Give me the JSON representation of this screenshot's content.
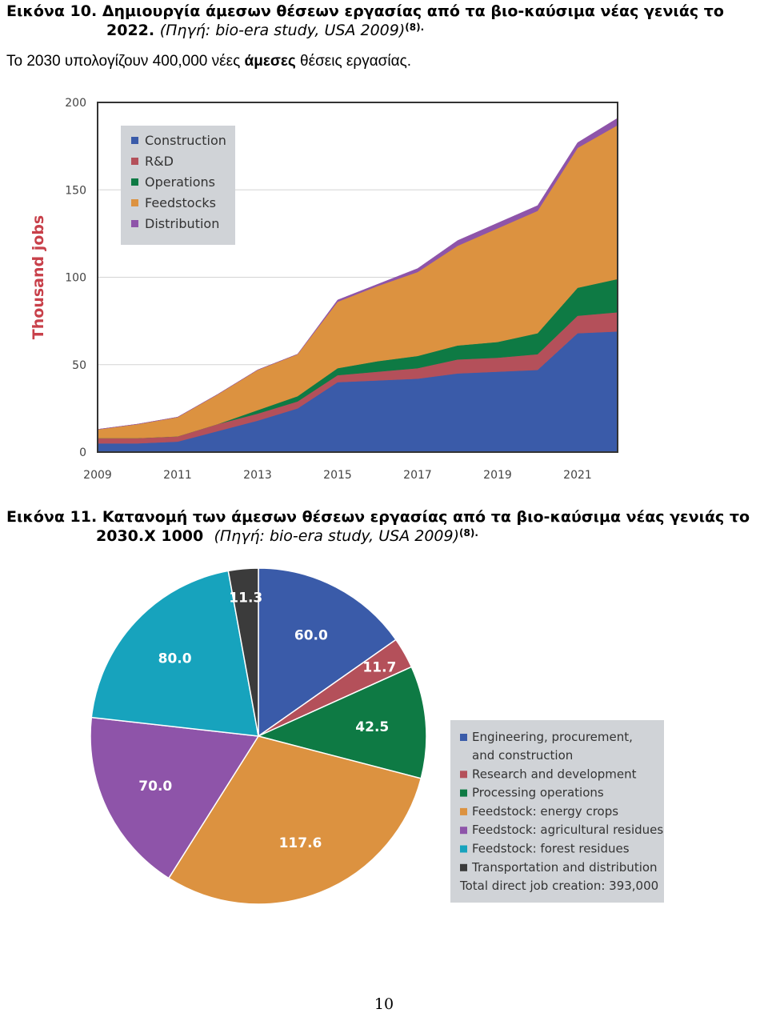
{
  "caption1": {
    "label": "Εικόνα 10.",
    "title_a": "Δημιουργία άμεσων θέσεων εργασίας από τα βιο-καύσιμα νέας γενιάς το",
    "title_b": "2022.",
    "source": "(Πηγή: bio-era study, USA 2009)",
    "ref": "(8)."
  },
  "note": {
    "before": "Το 2030 υπολογίζουν 400,000 νέες ",
    "bold": "άμεσες",
    "after": " θέσεις εργασίας."
  },
  "caption2": {
    "label": "Εικόνα 11.",
    "title_a": "Κατανομή των άμεσων θέσεων εργασίας από τα βιο-καύσιμα νέας γενιάς το",
    "title_b": "2030.Χ 1000",
    "source": "(Πηγή: bio-era study, USA 2009)",
    "ref": "(8)."
  },
  "page_number": "10",
  "chart_data": [
    {
      "type": "area",
      "stacked": true,
      "ylabel": "Thousand jobs",
      "ylim": [
        0,
        200
      ],
      "yticks": [
        "0",
        "50",
        "100",
        "150",
        "200"
      ],
      "xlim": [
        2009,
        2022
      ],
      "xticks": [
        "2009",
        "2011",
        "2013",
        "2015",
        "2017",
        "2019",
        "2021"
      ],
      "grid": true,
      "legend_position": "top-left",
      "x": [
        2009,
        2010,
        2011,
        2012,
        2013,
        2014,
        2015,
        2016,
        2017,
        2018,
        2019,
        2020,
        2021,
        2022
      ],
      "series": [
        {
          "name": "Construction",
          "color": "#3a5ba9",
          "values": [
            5,
            5,
            6,
            12,
            18,
            25,
            40,
            41,
            42,
            45,
            46,
            47,
            68,
            69
          ]
        },
        {
          "name": "R&D",
          "color": "#b4505a",
          "values": [
            3,
            3,
            3,
            4,
            4,
            4,
            4,
            5,
            6,
            8,
            8,
            9,
            10,
            11
          ]
        },
        {
          "name": "Operations",
          "color": "#0e7a44",
          "values": [
            0,
            0,
            0,
            0,
            2,
            3,
            4,
            6,
            7,
            8,
            9,
            12,
            16,
            19
          ]
        },
        {
          "name": "Feedstocks",
          "color": "#dc9240",
          "values": [
            5,
            8,
            11,
            17,
            23,
            24,
            38,
            43,
            48,
            57,
            65,
            70,
            80,
            88
          ]
        },
        {
          "name": "Distribution",
          "color": "#8e54a9",
          "values": [
            0,
            0,
            0,
            0,
            0,
            0,
            1,
            1,
            2,
            3,
            3,
            3,
            3,
            4
          ]
        }
      ]
    },
    {
      "type": "pie",
      "legend_position": "right",
      "total_label": "Total direct job creation: 393,000",
      "slices": [
        {
          "name": "Engineering, procurement,",
          "name2": "and construction",
          "label": "60.0",
          "value": 60.0,
          "color": "#3a5ba9"
        },
        {
          "name": "Research and development",
          "label": "11.7",
          "value": 11.7,
          "color": "#b4505a"
        },
        {
          "name": "Processing operations",
          "label": "42.5",
          "value": 42.5,
          "color": "#0e7a44"
        },
        {
          "name": "Feedstock: energy crops",
          "label": "117.6",
          "value": 117.6,
          "color": "#dc9240"
        },
        {
          "name": "Feedstock: agricultural residues",
          "label": "70.0",
          "value": 70.0,
          "color": "#8e54a9"
        },
        {
          "name": "Feedstock: forest residues",
          "label": "80.0",
          "value": 80.0,
          "color": "#17a3bd"
        },
        {
          "name": "Transportation and distribution",
          "label": "11.3",
          "value": 11.3,
          "color": "#3b3b3b"
        }
      ]
    }
  ]
}
